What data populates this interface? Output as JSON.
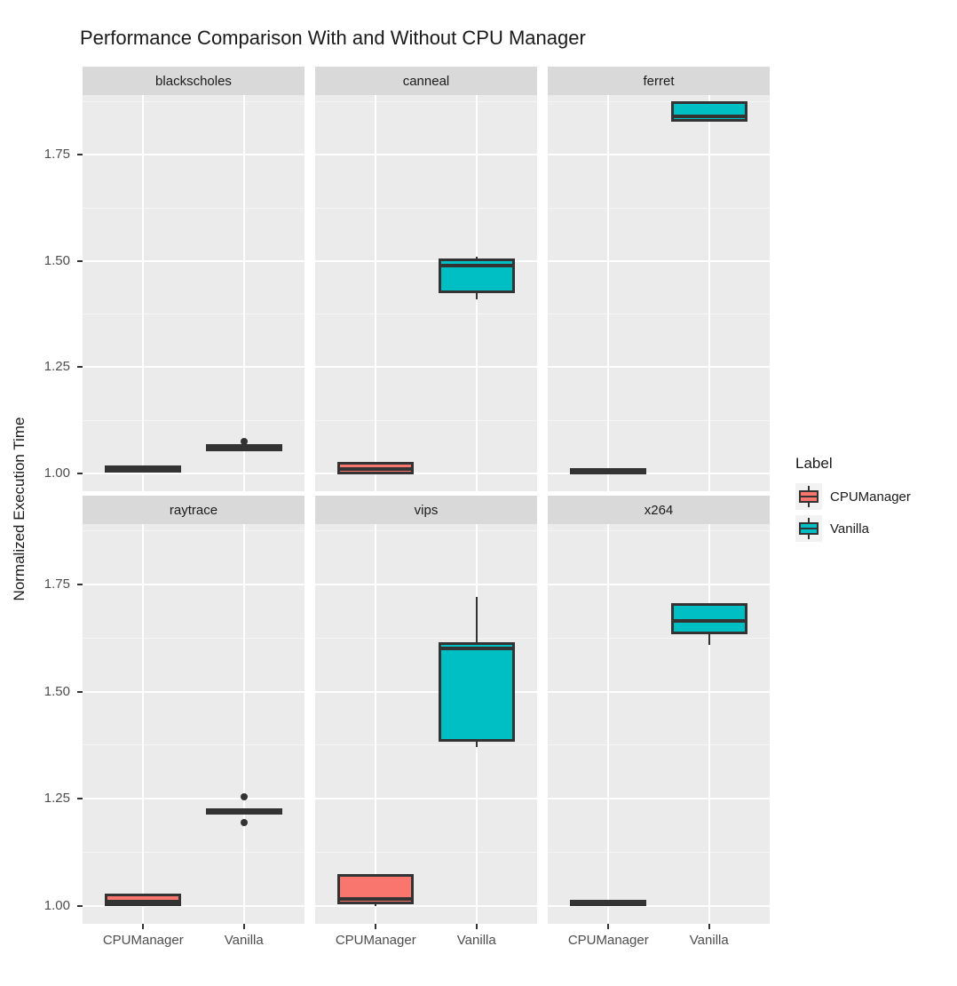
{
  "chart_data": {
    "type": "boxplot",
    "title": "Performance Comparison With and Without CPU Manager",
    "ylabel": "Normalized Execution Time",
    "xlabel": "",
    "categories": [
      "CPUManager",
      "Vanilla"
    ],
    "yticks": [
      1.0,
      1.25,
      1.5,
      1.75
    ],
    "ytick_labels": [
      "1.00",
      "1.25",
      "1.50",
      "1.75"
    ],
    "minor_yticks": [
      1.125,
      1.375,
      1.625,
      1.875
    ],
    "ylim": [
      0.958,
      1.891
    ],
    "grid": "on",
    "panel_background": "#ebebeb",
    "strip_background": "#d9d9d9",
    "facets": [
      {
        "name": "blackscholes",
        "boxes": [
          {
            "group": "CPUManager",
            "whisker_low": 1.008,
            "q1": 1.009,
            "median": 1.01,
            "q3": 1.012,
            "whisker_high": 1.013,
            "outliers": []
          },
          {
            "group": "Vanilla",
            "whisker_low": 1.055,
            "q1": 1.058,
            "median": 1.06,
            "q3": 1.062,
            "whisker_high": 1.065,
            "outliers": [
              1.075
            ]
          }
        ]
      },
      {
        "name": "canneal",
        "boxes": [
          {
            "group": "CPUManager",
            "whisker_low": 1.003,
            "q1": 1.005,
            "median": 1.01,
            "q3": 1.02,
            "whisker_high": 1.022,
            "outliers": []
          },
          {
            "group": "Vanilla",
            "whisker_low": 1.41,
            "q1": 1.43,
            "median": 1.49,
            "q3": 1.5,
            "whisker_high": 1.51,
            "outliers": []
          }
        ]
      },
      {
        "name": "ferret",
        "boxes": [
          {
            "group": "CPUManager",
            "whisker_low": 1.002,
            "q1": 1.003,
            "median": 1.004,
            "q3": 1.006,
            "whisker_high": 1.007,
            "outliers": []
          },
          {
            "group": "Vanilla",
            "whisker_low": 1.83,
            "q1": 1.835,
            "median": 1.84,
            "q3": 1.87,
            "whisker_high": 1.872,
            "outliers": []
          }
        ]
      },
      {
        "name": "raytrace",
        "boxes": [
          {
            "group": "CPUManager",
            "whisker_low": 1.004,
            "q1": 1.005,
            "median": 1.01,
            "q3": 1.022,
            "whisker_high": 1.023,
            "outliers": []
          },
          {
            "group": "Vanilla",
            "whisker_low": 1.218,
            "q1": 1.219,
            "median": 1.22,
            "q3": 1.222,
            "whisker_high": 1.223,
            "outliers": [
              1.255,
              1.195
            ]
          }
        ]
      },
      {
        "name": "vips",
        "boxes": [
          {
            "group": "CPUManager",
            "whisker_low": 1.0,
            "q1": 1.01,
            "median": 1.016,
            "q3": 1.068,
            "whisker_high": 1.068,
            "outliers": []
          },
          {
            "group": "Vanilla",
            "whisker_low": 1.37,
            "q1": 1.39,
            "median": 1.6,
            "q3": 1.61,
            "whisker_high": 1.72,
            "outliers": []
          }
        ]
      },
      {
        "name": "x264",
        "boxes": [
          {
            "group": "CPUManager",
            "whisker_low": 1.004,
            "q1": 1.005,
            "median": 1.006,
            "q3": 1.008,
            "whisker_high": 1.009,
            "outliers": []
          },
          {
            "group": "Vanilla",
            "whisker_low": 1.61,
            "q1": 1.64,
            "median": 1.665,
            "q3": 1.7,
            "whisker_high": 1.7,
            "outliers": []
          }
        ]
      }
    ],
    "legend": {
      "title": "Label",
      "position": "right",
      "items": [
        {
          "label": "CPUManager",
          "color": "#F8766D"
        },
        {
          "label": "Vanilla",
          "color": "#00BFC4"
        }
      ]
    },
    "colors": {
      "box_outline": "#333333",
      "panel_background": "#ebebeb",
      "gridline": "#ffffff",
      "axis_text": "#4d4d4d"
    }
  }
}
